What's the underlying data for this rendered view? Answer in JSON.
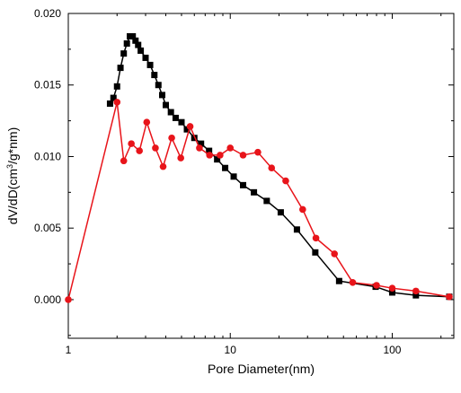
{
  "chart_data": {
    "type": "scatter",
    "xlabel": "Pore Diameter(nm)",
    "ylabel_parts": {
      "pre": "dV/dD(cm",
      "sup": "3",
      "post": "/g*nm)"
    },
    "xscale": "log",
    "xlim": [
      1,
      240
    ],
    "ylim": [
      -0.0027,
      0.02
    ],
    "xticks": [
      1,
      10,
      100
    ],
    "xtick_labels": [
      "1",
      "10",
      "100"
    ],
    "yticks": [
      0.0,
      0.005,
      0.01,
      0.015,
      0.02
    ],
    "ytick_labels": [
      "0.000",
      "0.005",
      "0.010",
      "0.015",
      "0.020"
    ],
    "grid": false,
    "legend": "none",
    "series": [
      {
        "color": "#000000",
        "marker": "square",
        "x": [
          1.81,
          1.9,
          2.0,
          2.1,
          2.2,
          2.3,
          2.4,
          2.5,
          2.6,
          2.7,
          2.8,
          3.0,
          3.2,
          3.4,
          3.6,
          3.8,
          4.0,
          4.3,
          4.6,
          5.0,
          5.4,
          6.0,
          6.6,
          7.4,
          8.3,
          9.3,
          10.5,
          12.0,
          14.0,
          16.8,
          20.5,
          25.8,
          33.5,
          47.0,
          79.0,
          100.0,
          140.0,
          225.0
        ],
        "y": [
          0.0137,
          0.0141,
          0.0149,
          0.0162,
          0.0172,
          0.0179,
          0.0184,
          0.0184,
          0.0181,
          0.0178,
          0.0174,
          0.0169,
          0.0164,
          0.0157,
          0.015,
          0.0143,
          0.0136,
          0.0131,
          0.0127,
          0.0124,
          0.0119,
          0.0113,
          0.0109,
          0.0104,
          0.0098,
          0.0092,
          0.0086,
          0.008,
          0.0075,
          0.0069,
          0.0061,
          0.0049,
          0.0033,
          0.0013,
          0.0009,
          0.0005,
          0.0003,
          0.0002
        ]
      },
      {
        "color": "#e8141a",
        "marker": "circle",
        "x": [
          1.0,
          2.0,
          2.2,
          2.45,
          2.75,
          3.05,
          3.45,
          3.85,
          4.35,
          4.95,
          5.65,
          6.45,
          7.45,
          8.65,
          10.0,
          12.0,
          14.8,
          18.0,
          22.0,
          28.0,
          33.8,
          44.0,
          57.0,
          80.0,
          100.0,
          140.0,
          225.0
        ],
        "y": [
          0.0,
          0.0138,
          0.0097,
          0.0109,
          0.0104,
          0.0124,
          0.0106,
          0.0093,
          0.0113,
          0.0099,
          0.0121,
          0.0106,
          0.0101,
          0.0101,
          0.0106,
          0.0101,
          0.0103,
          0.0092,
          0.0083,
          0.0063,
          0.0043,
          0.0032,
          0.0012,
          0.001,
          0.0008,
          0.0006,
          0.0002
        ]
      }
    ]
  }
}
